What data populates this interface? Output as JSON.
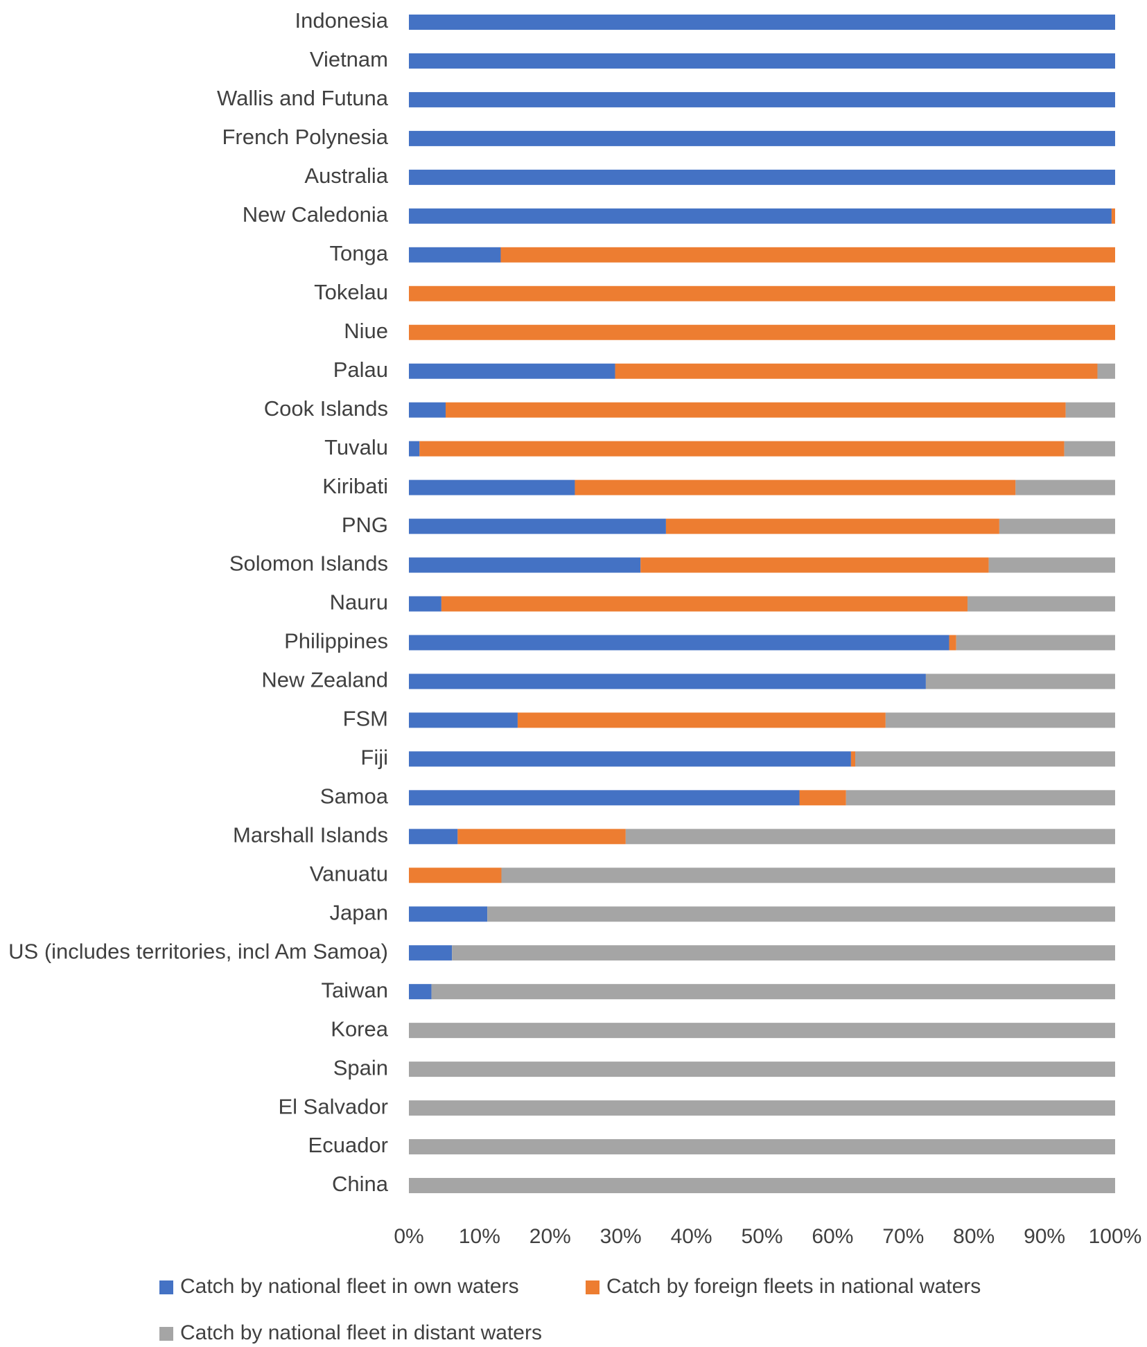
{
  "chart_data": {
    "type": "bar",
    "orientation": "horizontal",
    "stacked": true,
    "percent": true,
    "categories": [
      "Indonesia",
      "Vietnam",
      "Wallis and Futuna",
      "French Polynesia",
      "Australia",
      "New Caledonia",
      "Tonga",
      "Tokelau",
      "Niue",
      "Palau",
      "Cook Islands",
      "Tuvalu",
      "Kiribati",
      "PNG",
      "Solomon  Islands",
      "Nauru",
      "Philippines",
      "New Zealand",
      "FSM",
      "Fiji",
      "Samoa",
      "Marshall Islands",
      "Vanuatu",
      "Japan",
      "US (includes territories, incl Am Samoa)",
      "Taiwan",
      "Korea",
      "Spain",
      "El Salvador",
      "Ecuador",
      "China"
    ],
    "series": [
      {
        "name": "Catch by national fleet in own waters",
        "color": "#4472C4",
        "values": [
          100,
          100,
          100,
          100,
          100,
          99.5,
          13,
          0,
          0,
          29.2,
          5.2,
          1.5,
          23.5,
          36.4,
          32.8,
          4.6,
          76.5,
          73.2,
          15.4,
          62.6,
          55.3,
          6.9,
          0,
          11.1,
          6.1,
          3.2,
          0,
          0,
          0,
          0,
          0
        ]
      },
      {
        "name": "Catch by foreign fleets in national waters",
        "color": "#ED7D31",
        "values": [
          0,
          0,
          0,
          0,
          0,
          0.5,
          87,
          100,
          100,
          68.3,
          87.8,
          91.3,
          62.4,
          47.2,
          49.3,
          74.5,
          1,
          0,
          52.1,
          0.6,
          6.6,
          23.8,
          13.1,
          0,
          0,
          0,
          0,
          0,
          0,
          0,
          0
        ]
      },
      {
        "name": "Catch by national fleet in distant waters",
        "color": "#A5A5A5",
        "values": [
          0,
          0,
          0,
          0,
          0,
          0,
          0,
          0,
          0,
          2.5,
          7,
          7.2,
          14.1,
          16.4,
          17.9,
          20.9,
          22.5,
          26.8,
          32.5,
          36.8,
          38.1,
          69.3,
          86.9,
          88.9,
          93.9,
          96.8,
          100,
          100,
          100,
          100,
          100
        ]
      }
    ],
    "xlim": [
      0,
      100
    ],
    "xticks": [
      "0%",
      "10%",
      "20%",
      "30%",
      "40%",
      "50%",
      "60%",
      "70%",
      "80%",
      "90%",
      "100%"
    ],
    "title": "",
    "xlabel": "",
    "ylabel": "",
    "grid": false,
    "legend_position": "bottom"
  }
}
